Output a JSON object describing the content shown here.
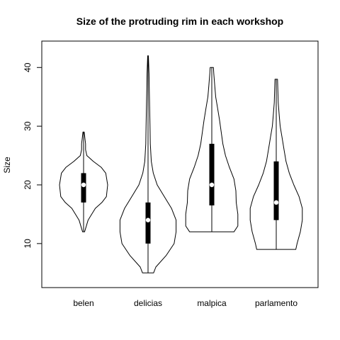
{
  "chart_data": {
    "type": "violin",
    "title": "Size of the protruding rim in each workshop",
    "xlabel": "",
    "ylabel": "Size",
    "ylim": [
      2.5,
      44.5
    ],
    "yticks": [
      10,
      20,
      30,
      40
    ],
    "categories": [
      "belen",
      "delicias",
      "malpica",
      "parlamento"
    ],
    "series": [
      {
        "category": "belen",
        "min": 12,
        "q1": 17,
        "median": 20,
        "q3": 22,
        "max": 29,
        "profile": [
          [
            12,
            0.03
          ],
          [
            14,
            0.14
          ],
          [
            16,
            0.36
          ],
          [
            17,
            0.56
          ],
          [
            18,
            0.7
          ],
          [
            20,
            0.74
          ],
          [
            22,
            0.68
          ],
          [
            23,
            0.54
          ],
          [
            24,
            0.3
          ],
          [
            25,
            0.1
          ],
          [
            26,
            0.06
          ],
          [
            27,
            0.06
          ],
          [
            28,
            0.04
          ],
          [
            29,
            0.02
          ]
        ]
      },
      {
        "category": "delicias",
        "min": 5,
        "q1": 10,
        "median": 14,
        "q3": 17,
        "max": 42,
        "profile": [
          [
            5,
            0.17
          ],
          [
            6,
            0.24
          ],
          [
            8,
            0.56
          ],
          [
            10,
            0.8
          ],
          [
            12,
            0.86
          ],
          [
            14,
            0.86
          ],
          [
            16,
            0.72
          ],
          [
            18,
            0.5
          ],
          [
            20,
            0.28
          ],
          [
            22,
            0.16
          ],
          [
            24,
            0.1
          ],
          [
            27,
            0.07
          ],
          [
            30,
            0.06
          ],
          [
            33,
            0.05
          ],
          [
            36,
            0.04
          ],
          [
            39,
            0.03
          ],
          [
            42,
            0.01
          ]
        ]
      },
      {
        "category": "malpica",
        "min": 12,
        "q1": 16.5,
        "median": 20,
        "q3": 27,
        "max": 40,
        "profile": [
          [
            12,
            0.68
          ],
          [
            13,
            0.8
          ],
          [
            15,
            0.8
          ],
          [
            17,
            0.75
          ],
          [
            19,
            0.74
          ],
          [
            21,
            0.68
          ],
          [
            23,
            0.54
          ],
          [
            25,
            0.42
          ],
          [
            27,
            0.34
          ],
          [
            29,
            0.29
          ],
          [
            31,
            0.24
          ],
          [
            33,
            0.18
          ],
          [
            35,
            0.12
          ],
          [
            37,
            0.09
          ],
          [
            39,
            0.06
          ],
          [
            40,
            0.05
          ]
        ]
      },
      {
        "category": "parlamento",
        "min": 9,
        "q1": 14,
        "median": 17,
        "q3": 24,
        "max": 38,
        "profile": [
          [
            9,
            0.6
          ],
          [
            10,
            0.64
          ],
          [
            12,
            0.74
          ],
          [
            14,
            0.8
          ],
          [
            16,
            0.8
          ],
          [
            18,
            0.7
          ],
          [
            20,
            0.54
          ],
          [
            22,
            0.4
          ],
          [
            24,
            0.3
          ],
          [
            26,
            0.24
          ],
          [
            28,
            0.18
          ],
          [
            30,
            0.12
          ],
          [
            32,
            0.09
          ],
          [
            34,
            0.06
          ],
          [
            36,
            0.05
          ],
          [
            38,
            0.04
          ]
        ]
      }
    ],
    "colors": {
      "outline": "#000000",
      "box": "#000000",
      "median": "#ffffff"
    },
    "grid": false,
    "legend": "none"
  }
}
